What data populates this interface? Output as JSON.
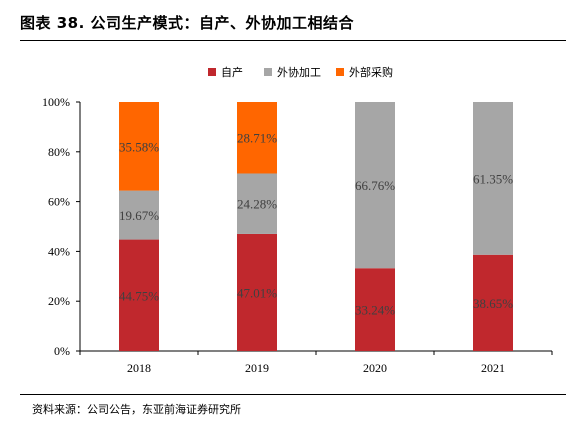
{
  "figure": {
    "title": "图表 38. 公司生产模式：自产、外协加工相结合",
    "source": "资料来源：公司公告，东亚前海证券研究所"
  },
  "chart_data": {
    "type": "bar",
    "stacked": true,
    "percent": true,
    "categories": [
      "2018",
      "2019",
      "2020",
      "2021"
    ],
    "series": [
      {
        "name": "自产",
        "color": "#C0282D",
        "values": [
          44.75,
          47.01,
          33.24,
          38.65
        ],
        "labels": [
          "44.75%",
          "47.01%",
          "33.24%",
          "38.65%"
        ]
      },
      {
        "name": "外协加工",
        "color": "#A6A6A6",
        "values": [
          19.67,
          24.28,
          66.76,
          61.35
        ],
        "labels": [
          "19.67%",
          "24.28%",
          "66.76%",
          "61.35%"
        ]
      },
      {
        "name": "外部采购",
        "color": "#FF6600",
        "values": [
          35.58,
          28.71,
          0,
          0
        ],
        "labels": [
          "35.58%",
          "28.71%",
          "",
          ""
        ]
      }
    ],
    "y_ticks": [
      "0%",
      "20%",
      "40%",
      "60%",
      "80%",
      "100%"
    ],
    "ylim": [
      0,
      100
    ],
    "legend_position": "top",
    "grid": false
  }
}
